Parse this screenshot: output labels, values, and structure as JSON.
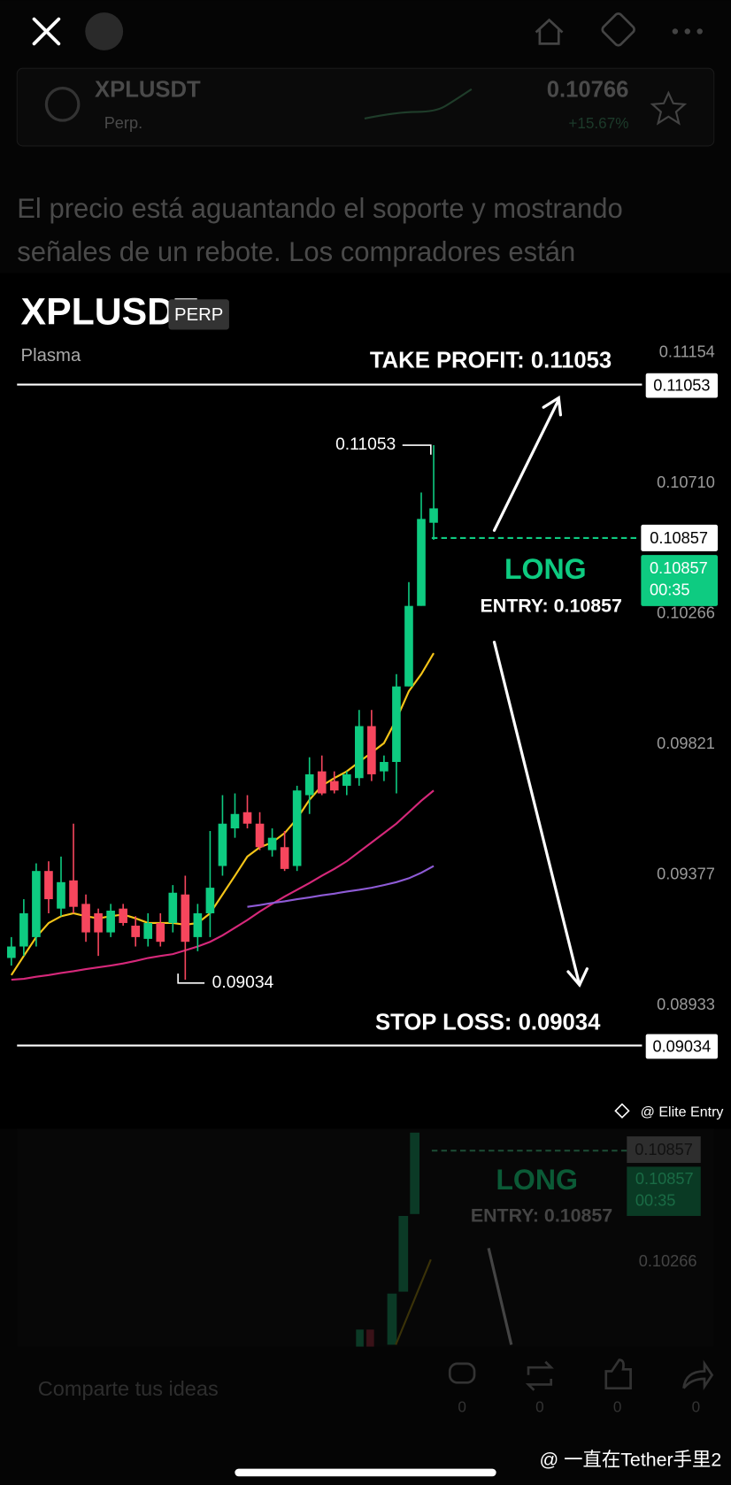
{
  "header": {
    "pair": "XPLUSDT",
    "contract": "Perp.",
    "price": "0.10766",
    "change": "+15.67%"
  },
  "post": {
    "lines": [
      "El precio está aguantando el soporte y mostrando",
      "señales de un rebote. Los compradores están"
    ]
  },
  "chart_data": {
    "type": "candlestick",
    "title": "XPLUSDT",
    "badge": "PERP",
    "subtitle": "Plasma",
    "up_color": "#0ecb81",
    "down_color": "#f6465d",
    "ylim": [
      0.0852,
      0.1142
    ],
    "yticks": [
      0.11154,
      {
        "value": 0.1071,
        "label": "0.10710"
      },
      0.10266,
      0.09821,
      0.09377,
      0.08933
    ],
    "open": [
      0.09095,
      0.09134,
      0.09166,
      0.09391,
      0.09263,
      0.09359,
      0.09279,
      0.09247,
      0.09182,
      0.09263,
      0.09205,
      0.0916,
      0.09214,
      0.09214,
      0.09311,
      0.09166,
      0.09247,
      0.09408,
      0.09536,
      0.09591,
      0.09552,
      0.09462,
      0.09472,
      0.09408,
      0.09649,
      0.0973,
      0.09697,
      0.09681,
      0.09707,
      0.09884,
      0.0973,
      0.09762,
      0.10019,
      0.10293,
      0.10576
    ],
    "high": [
      0.09166,
      0.09295,
      0.09417,
      0.09424,
      0.0944,
      0.09552,
      0.09311,
      0.09263,
      0.09279,
      0.09279,
      0.09237,
      0.09247,
      0.09247,
      0.09343,
      0.09375,
      0.09279,
      0.09527,
      0.09649,
      0.09655,
      0.09649,
      0.09591,
      0.09536,
      0.09527,
      0.09681,
      0.09778,
      0.09784,
      0.0973,
      0.0973,
      0.09939,
      0.09939,
      0.09784,
      0.10061,
      0.10374,
      0.10679,
      0.1084
    ],
    "low": [
      0.09069,
      0.09102,
      0.09134,
      0.09247,
      0.09237,
      0.09247,
      0.0915,
      0.09102,
      0.09166,
      0.09205,
      0.09134,
      0.09134,
      0.09134,
      0.09182,
      0.09021,
      0.09118,
      0.09166,
      0.09375,
      0.09504,
      0.09536,
      0.09462,
      0.0944,
      0.09391,
      0.09391,
      0.09585,
      0.09649,
      0.09655,
      0.09649,
      0.09681,
      0.09697,
      0.09697,
      0.09655,
      0.10019,
      0.10293,
      0.10518
    ],
    "close": [
      0.09134,
      0.09247,
      0.09391,
      0.09295,
      0.09353,
      0.09269,
      0.09182,
      0.09182,
      0.09256,
      0.09214,
      0.09166,
      0.09214,
      0.0915,
      0.09317,
      0.0915,
      0.09247,
      0.09334,
      0.09552,
      0.09585,
      0.09552,
      0.09472,
      0.09504,
      0.09398,
      0.09665,
      0.0972,
      0.09655,
      0.09665,
      0.0972,
      0.09884,
      0.0972,
      0.09762,
      0.10019,
      0.10293,
      0.10589,
      0.10625
    ],
    "series": [
      {
        "color": "#f5c518",
        "values": [
          0.09037,
          0.09102,
          0.09166,
          0.09214,
          0.09237,
          0.09247,
          0.09237,
          0.0923,
          0.09237,
          0.09243,
          0.0923,
          0.09214,
          0.09214,
          0.09214,
          0.09208,
          0.09214,
          0.09247,
          0.09311,
          0.09375,
          0.0944,
          0.09472,
          0.09488,
          0.0952,
          0.09569,
          0.09633,
          0.09681,
          0.09707,
          0.0973,
          0.09762,
          0.09794,
          0.09826,
          0.09907,
          0.10003,
          0.10061,
          0.10132
        ]
      },
      {
        "color": "#d6287a",
        "values": [
          0.09021,
          0.09024,
          0.09031,
          0.09037,
          0.09044,
          0.0905,
          0.09057,
          0.09063,
          0.09069,
          0.09076,
          0.09085,
          0.09095,
          0.09102,
          0.09108,
          0.09121,
          0.09134,
          0.0915,
          0.09172,
          0.09198,
          0.09224,
          0.09253,
          0.09279,
          0.09304,
          0.09327,
          0.0935,
          0.09375,
          0.09398,
          0.09424,
          0.09456,
          0.09488,
          0.0952,
          0.09552,
          0.09591,
          0.0963,
          0.09665
        ]
      },
      {
        "color": "#8e5bd6",
        "values": [
          null,
          null,
          null,
          null,
          null,
          null,
          null,
          null,
          null,
          null,
          null,
          null,
          null,
          null,
          null,
          null,
          null,
          null,
          null,
          0.09269,
          0.09275,
          0.09282,
          0.09288,
          0.09295,
          0.09301,
          0.09308,
          0.09314,
          0.09321,
          0.09327,
          0.09334,
          0.09343,
          0.09353,
          0.09366,
          0.09385,
          0.09408
        ]
      }
    ],
    "annotations": {
      "high_label": "0.11053",
      "low_label": "0.09034",
      "take_profit": "TAKE PROFIT: 0.11053",
      "take_profit_tag": "0.11053",
      "entry_tag": "0.10857",
      "position": "LONG",
      "entry": "ENTRY: 0.10857",
      "price_tag": "0.10857",
      "countdown": "00:35",
      "stop_loss": "STOP LOSS: 0.09034",
      "stop_loss_tag": "0.09034"
    },
    "watermark": "@ Elite Entry"
  },
  "background_chart": {
    "entry_tag": "0.10857",
    "position": "LONG",
    "entry": "ENTRY: 0.10857",
    "price_tag": "0.10857",
    "countdown": "00:35",
    "tick": "0.10266"
  },
  "footer": {
    "placeholder": "Comparte tus ideas",
    "counts": [
      0,
      0,
      0,
      0
    ]
  },
  "attribution": "@ 一直在Tether手里2"
}
